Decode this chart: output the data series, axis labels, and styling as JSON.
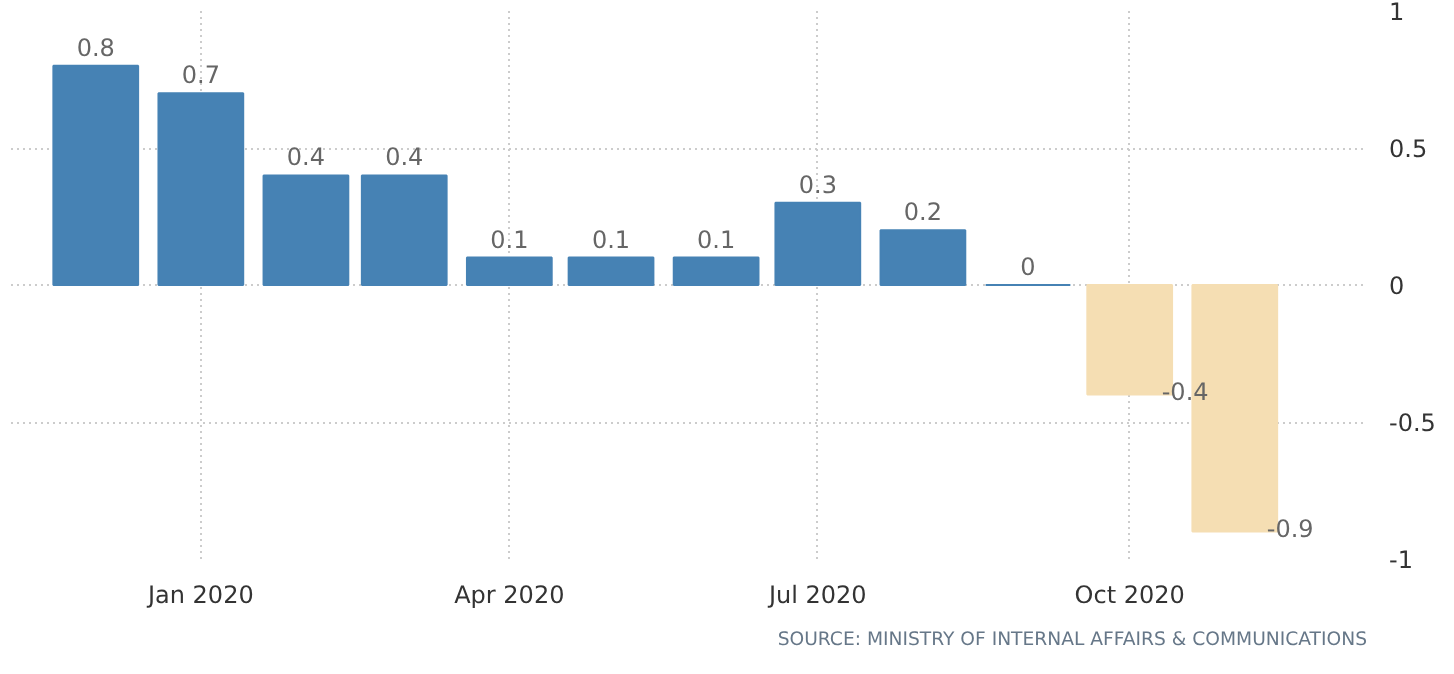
{
  "chart_data": {
    "type": "bar",
    "x": [
      "2019-12",
      "2020-01",
      "2020-02",
      "2020-03",
      "2020-04",
      "2020-05",
      "2020-06",
      "2020-07",
      "2020-08",
      "2020-09",
      "2020-10",
      "2020-11"
    ],
    "values": [
      0.8,
      0.7,
      0.4,
      0.4,
      0.1,
      0.1,
      0.1,
      0.3,
      0.2,
      0,
      -0.4,
      -0.9
    ],
    "colors": [
      "#4682b4",
      "#4682b4",
      "#4682b4",
      "#4682b4",
      "#4682b4",
      "#4682b4",
      "#4682b4",
      "#4682b4",
      "#4682b4",
      "#4682b4",
      "#f5deb3",
      "#f5deb3"
    ],
    "data_labels": true,
    "xlim": [
      "2019-11-06",
      "2020-12-10"
    ],
    "xticks": [
      {
        "value": "2020-01",
        "label": "Jan 2020"
      },
      {
        "value": "2020-04",
        "label": "Apr 2020"
      },
      {
        "value": "2020-07",
        "label": "Jul 2020"
      },
      {
        "value": "2020-10",
        "label": "Oct 2020"
      }
    ],
    "ylim": [
      -1,
      1
    ],
    "yticks": [
      1,
      0.5,
      0,
      -0.5,
      -1
    ],
    "grid": true,
    "annotations": [
      "SOURCE: MINISTRY OF INTERNAL AFFAIRS & COMMUNICATIONS"
    ]
  }
}
